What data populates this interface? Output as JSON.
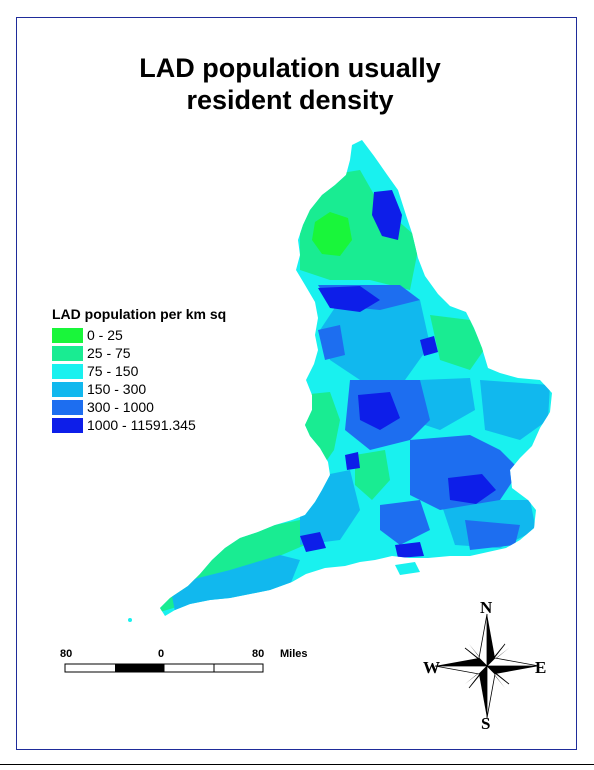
{
  "title": {
    "line1": "LAD population usually",
    "line2": "resident density"
  },
  "legend": {
    "title": "LAD population per km sq",
    "items": [
      {
        "label": "0 - 25",
        "color": "#19f63a"
      },
      {
        "label": "25 - 75",
        "color": "#19ec92"
      },
      {
        "label": "75 - 150",
        "color": "#19f1ef"
      },
      {
        "label": "150 - 300",
        "color": "#11b8ee"
      },
      {
        "label": "300 - 1000",
        "color": "#1d6ef0"
      },
      {
        "label": "1000 - 11591.345",
        "color": "#0d1ee9"
      }
    ]
  },
  "scalebar": {
    "left_label": "80",
    "mid_label": "0",
    "right_label": "80",
    "unit": "Miles"
  },
  "compass": {
    "north": "N",
    "south": "S",
    "east": "E",
    "west": "W"
  }
}
